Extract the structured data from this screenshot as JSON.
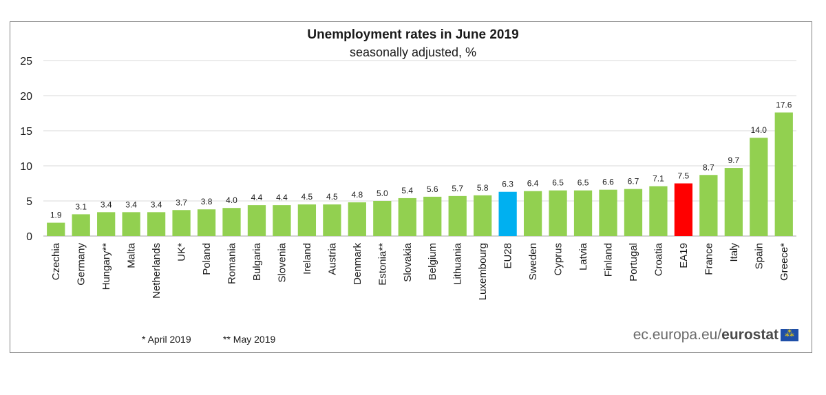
{
  "chart_data": {
    "type": "bar",
    "title": "Unemployment rates in June 2019",
    "subtitle": "seasonally adjusted, %",
    "ylim": [
      0,
      25
    ],
    "yticks": [
      0,
      5,
      10,
      15,
      20,
      25
    ],
    "grid": true,
    "categories": [
      "Czechia",
      "Germany",
      "Hungary**",
      "Malta",
      "Netherlands",
      "UK*",
      "Poland",
      "Romania",
      "Bulgaria",
      "Slovenia",
      "Ireland",
      "Austria",
      "Denmark",
      "Estonia**",
      "Slovakia",
      "Belgium",
      "Lithuania",
      "Luxembourg",
      "EU28",
      "Sweden",
      "Cyprus",
      "Latvia",
      "Finland",
      "Portugal",
      "Croatia",
      "EA19",
      "France",
      "Italy",
      "Spain",
      "Greece*"
    ],
    "values": [
      1.9,
      3.1,
      3.4,
      3.4,
      3.4,
      3.7,
      3.8,
      4.0,
      4.4,
      4.4,
      4.5,
      4.5,
      4.8,
      5.0,
      5.4,
      5.6,
      5.7,
      5.8,
      6.3,
      6.4,
      6.5,
      6.5,
      6.6,
      6.7,
      7.1,
      7.5,
      8.7,
      9.7,
      14.0,
      17.6
    ],
    "value_labels": [
      "1.9",
      "3.1",
      "3.4",
      "3.4",
      "3.4",
      "3.7",
      "3.8",
      "4.0",
      "4.4",
      "4.4",
      "4.5",
      "4.5",
      "4.8",
      "5.0",
      "5.4",
      "5.6",
      "5.7",
      "5.8",
      "6.3",
      "6.4",
      "6.5",
      "6.5",
      "6.6",
      "6.7",
      "7.1",
      "7.5",
      "8.7",
      "9.7",
      "14.0",
      "17.6"
    ],
    "colors": {
      "default": "#92d050",
      "highlight": {
        "EU28": "#00b0f0",
        "EA19": "#ff0000"
      },
      "grid": "#d9d9d9"
    }
  },
  "footnotes": {
    "april": "*  April 2019",
    "may": "** May 2019"
  },
  "source": {
    "site": "ec.europa.eu/",
    "brand": "eurostat",
    "flag_icon": "eu-flag-icon"
  }
}
